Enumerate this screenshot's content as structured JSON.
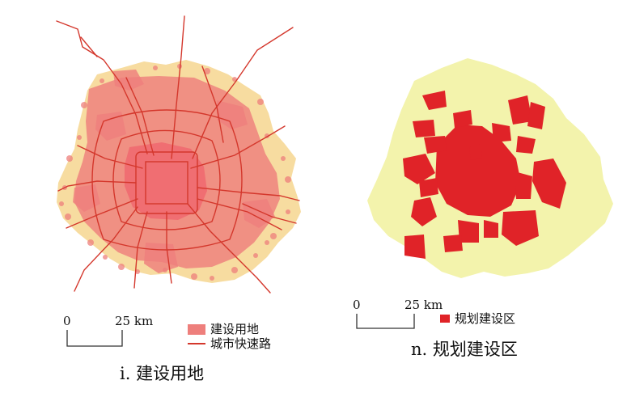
{
  "colors": {
    "background_area": "#f7dca0",
    "built_land": "#ee7f7c",
    "built_land_dense": "#f06e72",
    "expressway": "#d4372c",
    "planned_area_bg": "#f3f3ac",
    "planned_zone": "#e02328"
  },
  "left_map": {
    "scale": {
      "zero": "0",
      "value": "25 km"
    },
    "legend": [
      {
        "label": "建设用地",
        "icon": "filled-rectangle"
      },
      {
        "label": "城市快速路",
        "icon": "line"
      }
    ],
    "caption": "i. 建设用地"
  },
  "right_map": {
    "scale": {
      "zero": "0",
      "value": "25 km"
    },
    "legend": [
      {
        "label": "规划建设区",
        "icon": "filled-rectangle"
      }
    ],
    "caption": "n. 规划建设区"
  }
}
